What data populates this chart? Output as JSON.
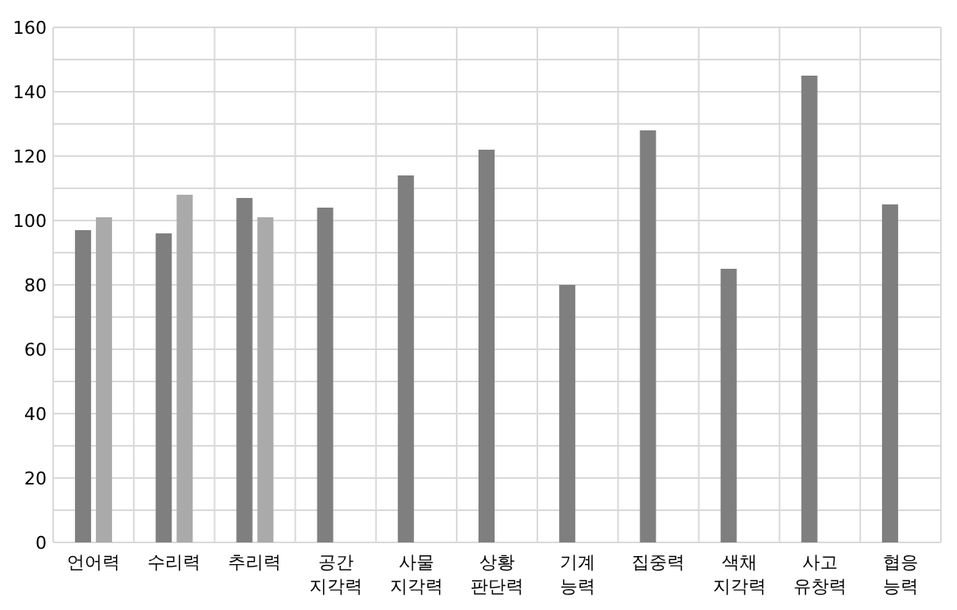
{
  "chart_data": {
    "type": "bar",
    "categories": [
      "언어력",
      "수리력",
      "추리력",
      "공간 지각력",
      "사물 지각력",
      "상황 판단력",
      "기계 능력",
      "집중력",
      "색채 지각력",
      "사고 유창력",
      "협응 능력"
    ],
    "series": [
      {
        "color": "#7f7f7f",
        "values": [
          97,
          96,
          107,
          104,
          114,
          122,
          80,
          128,
          85,
          145,
          105
        ]
      },
      {
        "color": "#aaaaaa",
        "values": [
          101,
          108,
          101,
          null,
          null,
          null,
          null,
          null,
          null,
          null,
          null
        ]
      }
    ],
    "ylim": [
      0,
      160
    ],
    "yticks": [
      0,
      {
        "value": 10,
        "label": null
      },
      20,
      {
        "value": 30,
        "label": null
      },
      40,
      {
        "value": 50,
        "label": null
      },
      60,
      {
        "value": 70,
        "label": null
      },
      80,
      {
        "value": 90,
        "label": null
      },
      100,
      {
        "value": 110,
        "label": null
      },
      120,
      {
        "value": 130,
        "label": null
      },
      140,
      {
        "value": 150,
        "label": null
      },
      160
    ],
    "grid": true
  }
}
